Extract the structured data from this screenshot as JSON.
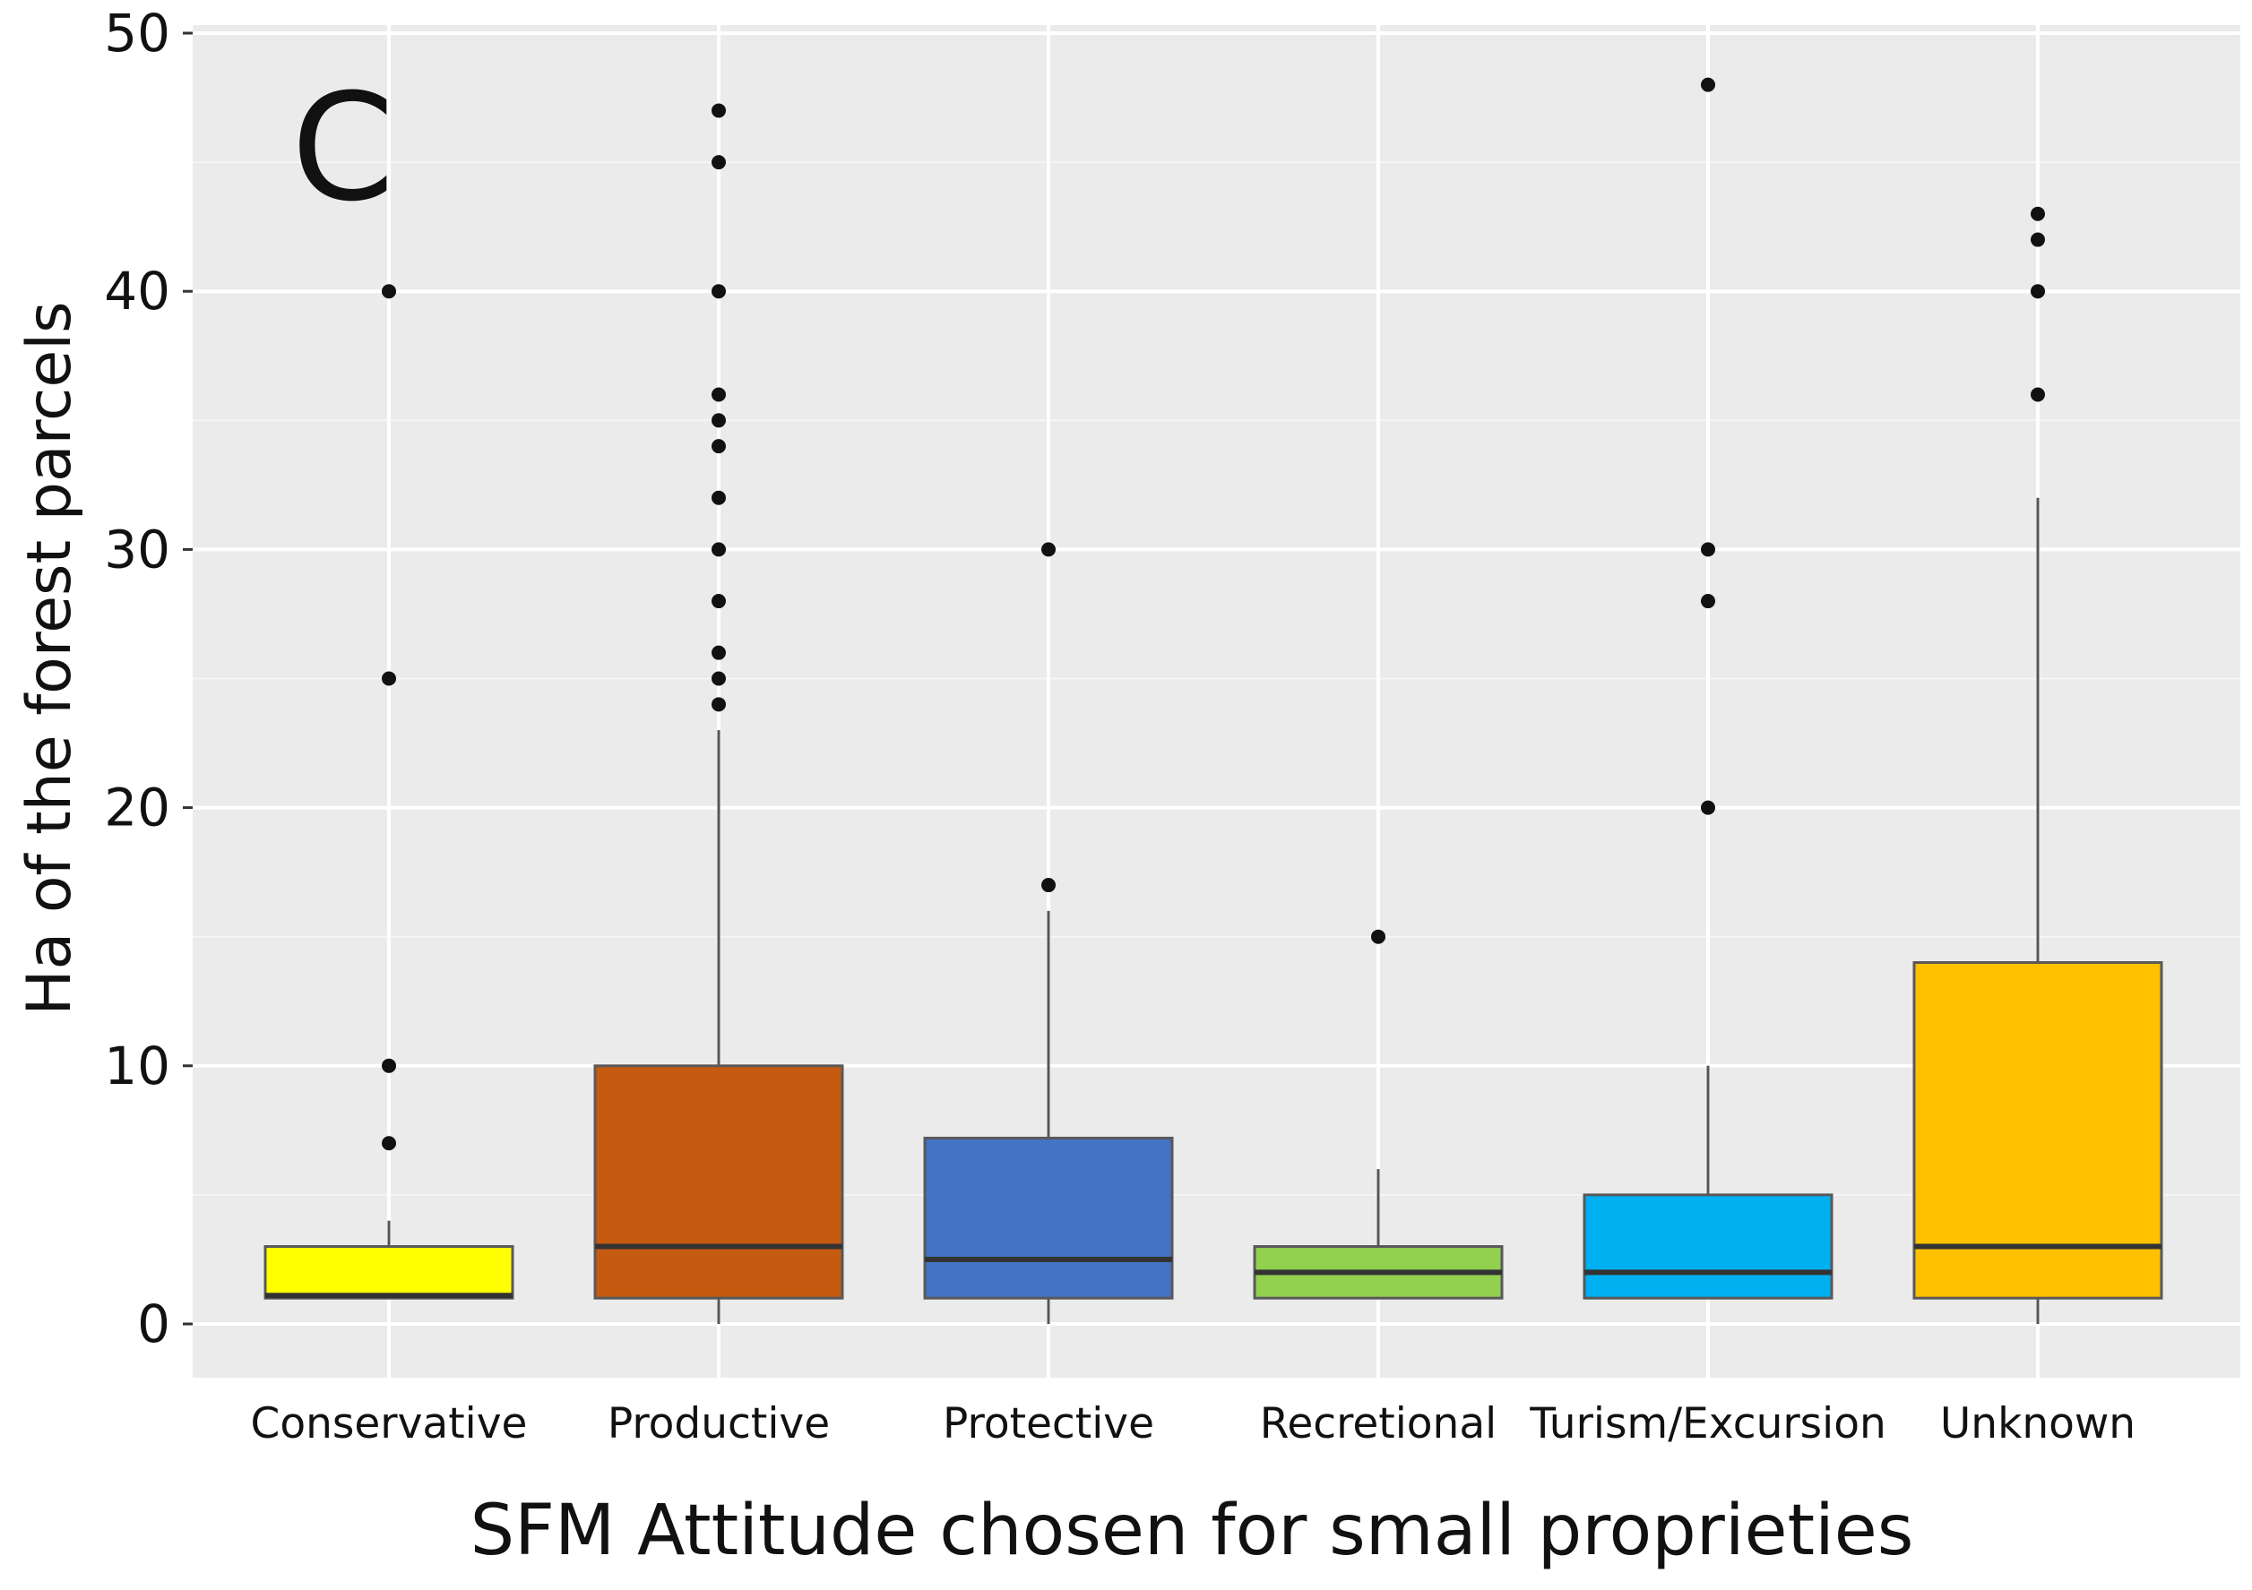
{
  "chart_data": {
    "type": "boxplot",
    "panel_label": "C",
    "xlabel": "SFM Attitude chosen for small proprieties",
    "ylabel": "Ha of the forest parcels",
    "ylim": [
      0,
      50
    ],
    "yticks": [
      0,
      10,
      20,
      30,
      40,
      50
    ],
    "grid": true,
    "categories": [
      "Conservative",
      "Productive",
      "Protective",
      "Recretional",
      "Turism/Excursion",
      "Unknown"
    ],
    "boxes": [
      {
        "category": "Conservative",
        "color": "#ffff00",
        "min": 1,
        "q1": 1,
        "median": 1.1,
        "q3": 3,
        "max": 4,
        "outliers": [
          7,
          10,
          25,
          40
        ]
      },
      {
        "category": "Productive",
        "color": "#c55a11",
        "min": 0,
        "q1": 1,
        "median": 3,
        "q3": 10,
        "max": 23,
        "outliers": [
          24,
          25,
          26,
          28,
          30,
          32,
          34,
          35,
          36,
          40,
          45,
          47
        ]
      },
      {
        "category": "Protective",
        "color": "#4472c4",
        "min": 0,
        "q1": 1,
        "median": 2.5,
        "q3": 7.2,
        "max": 16,
        "outliers": [
          17,
          30
        ]
      },
      {
        "category": "Recretional",
        "color": "#92d050",
        "min": 1,
        "q1": 1,
        "median": 2,
        "q3": 3,
        "max": 6,
        "outliers": [
          15
        ]
      },
      {
        "category": "Turism/Excursion",
        "color": "#00b0f0",
        "min": 1,
        "q1": 1,
        "median": 2,
        "q3": 5,
        "max": 10,
        "outliers": [
          20,
          28,
          30,
          48
        ]
      },
      {
        "category": "Unknown",
        "color": "#ffc000",
        "min": 0,
        "q1": 1,
        "median": 3,
        "q3": 14,
        "max": 32,
        "outliers": [
          36,
          40,
          42,
          43
        ]
      }
    ]
  }
}
